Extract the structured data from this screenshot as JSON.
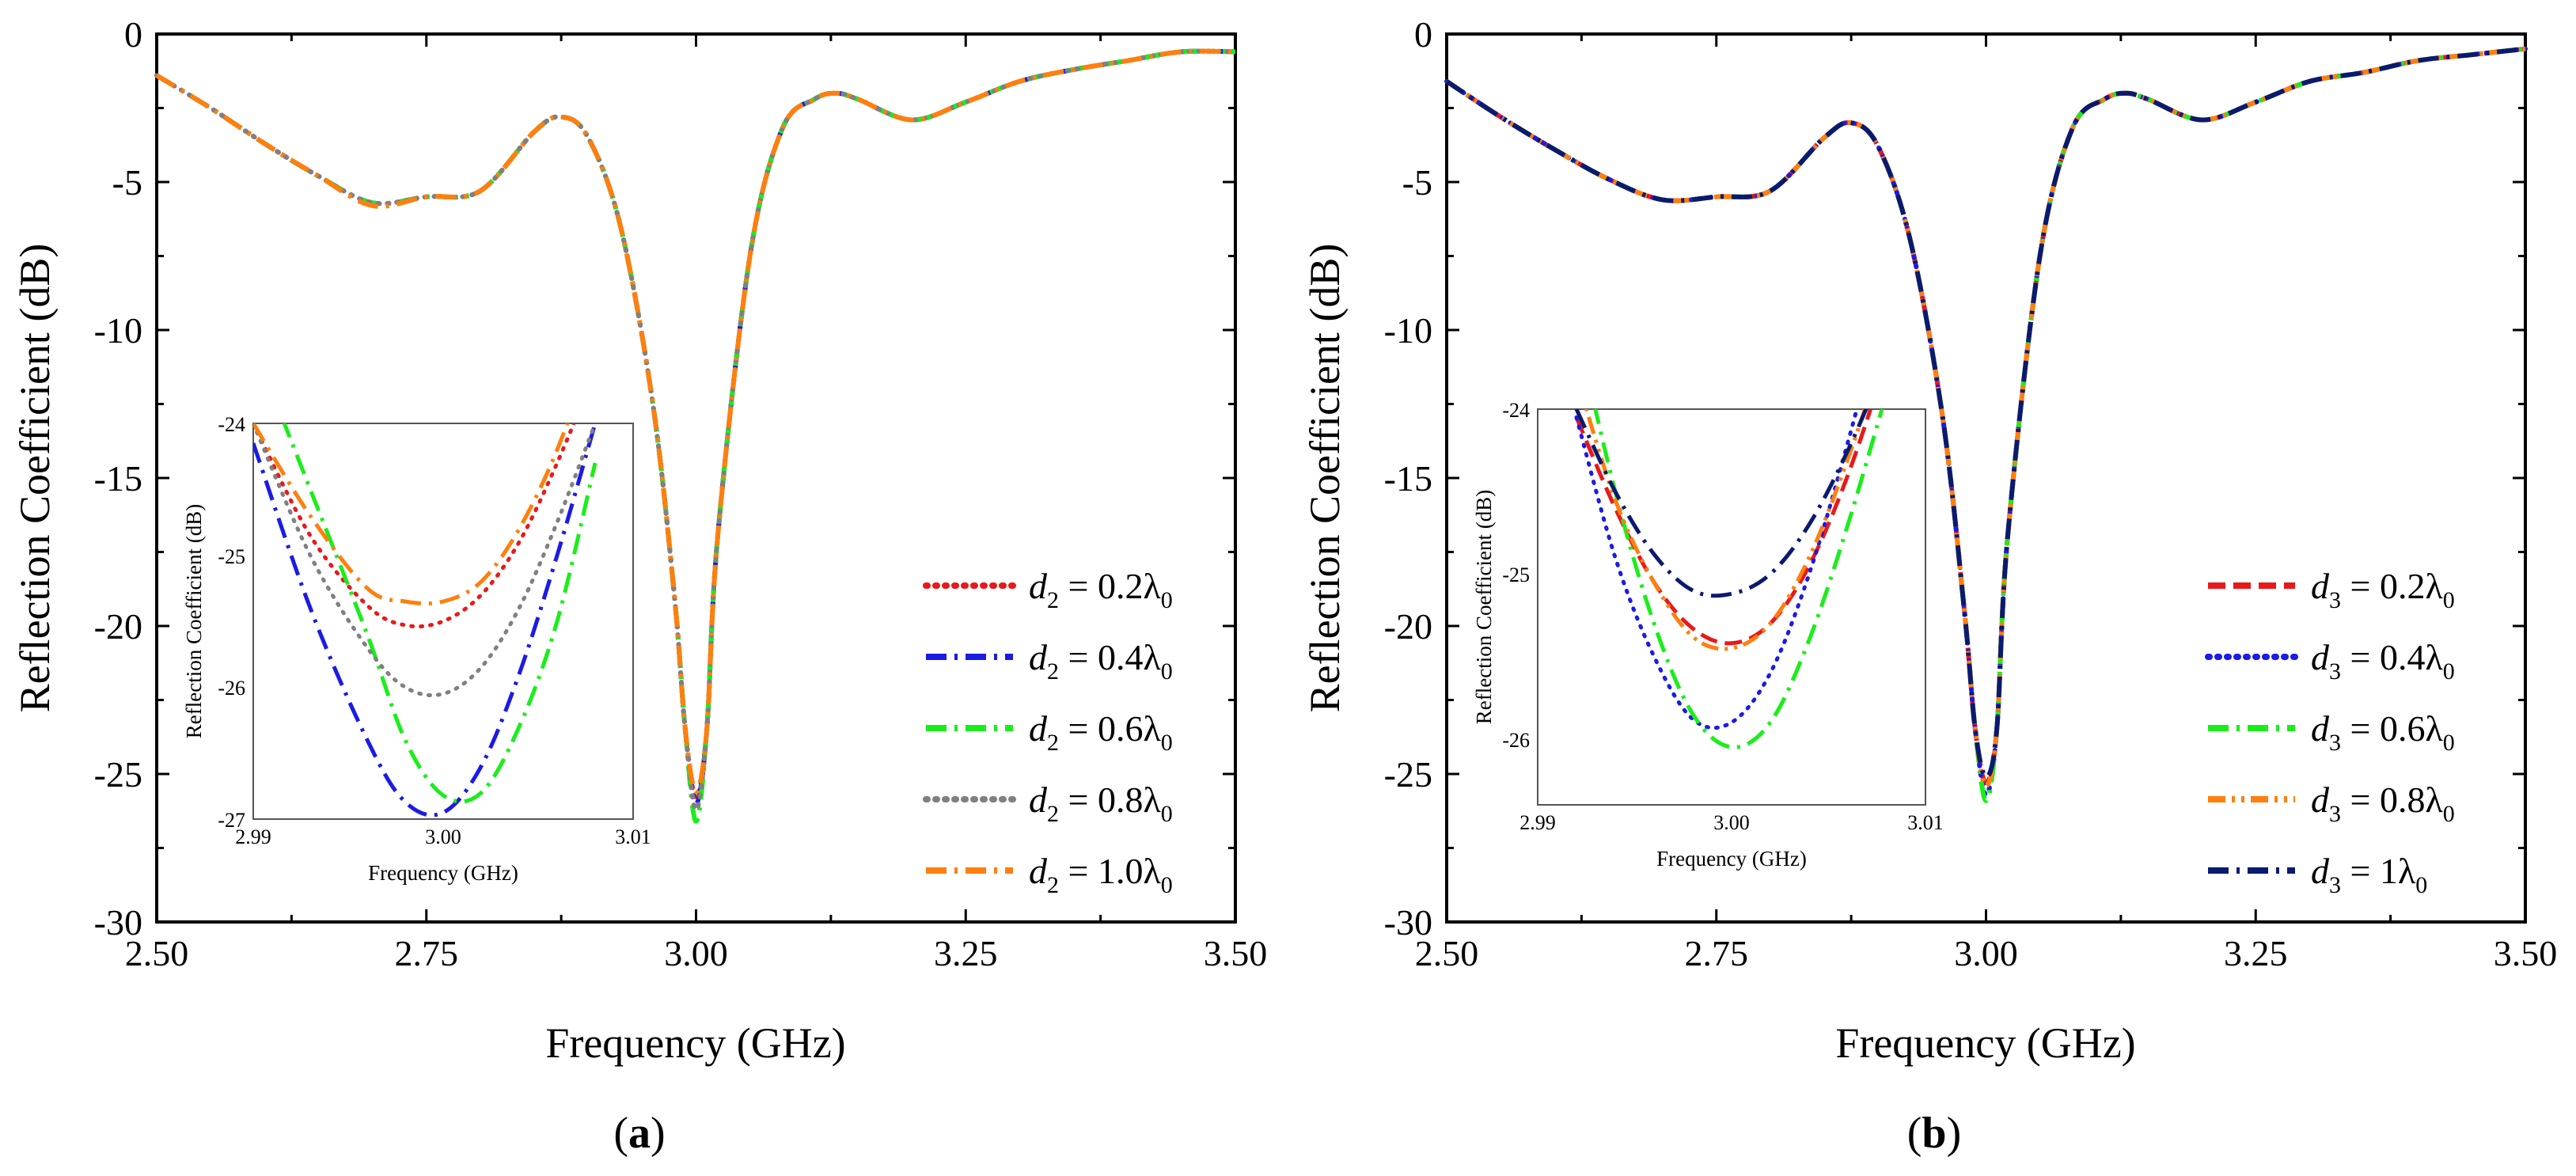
{
  "panels": [
    {
      "id": "a",
      "label": "a",
      "xlabel": "Frequency (GHz)",
      "ylabel": "Reflection Coefficient (dB)",
      "xticks": [
        "2.50",
        "2.75",
        "3.00",
        "3.25",
        "3.50"
      ],
      "yticks": [
        "0",
        "-5",
        "-10",
        "-15",
        "-20",
        "-25",
        "-30"
      ],
      "legend": [
        {
          "var": "d",
          "sub": "2",
          "value": " = 0.2λ",
          "sub0": "0"
        },
        {
          "var": "d",
          "sub": "2",
          "value": " = 0.4λ",
          "sub0": "0"
        },
        {
          "var": "d",
          "sub": "2",
          "value": " = 0.6λ",
          "sub0": "0"
        },
        {
          "var": "d",
          "sub": "2",
          "value": " = 0.8λ",
          "sub0": "0"
        },
        {
          "var": "d",
          "sub": "2",
          "value": " = 1.0λ",
          "sub0": "0"
        }
      ],
      "inset": {
        "xlabel": "Frequency (GHz)",
        "ylabel": "Reflection Coefficient (dB)",
        "xticks": [
          "2.99",
          "3.00",
          "3.01"
        ],
        "yticks": [
          "-24",
          "-25",
          "-26",
          "-27"
        ]
      }
    },
    {
      "id": "b",
      "label": "b",
      "xlabel": "Frequency (GHz)",
      "ylabel": "Reflection Coefficient (dB)",
      "xticks": [
        "2.50",
        "2.75",
        "3.00",
        "3.25",
        "3.50"
      ],
      "yticks": [
        "0",
        "-5",
        "-10",
        "-15",
        "-20",
        "-25",
        "-30"
      ],
      "legend": [
        {
          "var": "d",
          "sub": "3",
          "value": " = 0.2λ",
          "sub0": "0"
        },
        {
          "var": "d",
          "sub": "3",
          "value": " = 0.4λ",
          "sub0": "0"
        },
        {
          "var": "d",
          "sub": "3",
          "value": " = 0.6λ",
          "sub0": "0"
        },
        {
          "var": "d",
          "sub": "3",
          "value": " = 0.8λ",
          "sub0": "0"
        },
        {
          "var": "d",
          "sub": "3",
          "value": " = 1λ",
          "sub0": "0"
        }
      ],
      "inset": {
        "xlabel": "Frequency (GHz)",
        "ylabel": "Reflection Coefficient (dB)",
        "xticks": [
          "2.99",
          "3.00",
          "3.01"
        ],
        "yticks": [
          "-24",
          "-25",
          "-26"
        ]
      }
    }
  ],
  "chart_data": [
    {
      "type": "line",
      "panel": "a",
      "xlabel": "Frequency (GHz)",
      "ylabel": "Reflection Coefficient (dB)",
      "xlim": [
        2.5,
        3.5
      ],
      "ylim": [
        -30,
        0
      ],
      "x": [
        2.5,
        2.55,
        2.6,
        2.65,
        2.7,
        2.75,
        2.8,
        2.85,
        2.875,
        2.9,
        2.93,
        2.96,
        2.98,
        2.99,
        3.0,
        3.01,
        3.02,
        3.05,
        3.08,
        3.11,
        3.13,
        3.15,
        3.2,
        3.25,
        3.3,
        3.35,
        3.4,
        3.45,
        3.5
      ],
      "series": [
        {
          "name": "d2 = 0.2λ0",
          "color": "#e8191b",
          "dash": "dot",
          "y": [
            -1.4,
            -2.5,
            -3.7,
            -4.8,
            -5.7,
            -5.5,
            -5.3,
            -3.3,
            -2.8,
            -3.5,
            -6.5,
            -12.5,
            -19,
            -23.5,
            -25.8,
            -23.5,
            -17,
            -7.5,
            -3.2,
            -2.2,
            -2.0,
            -2.2,
            -2.9,
            -2.3,
            -1.6,
            -1.2,
            -0.9,
            -0.6,
            -0.6
          ]
        },
        {
          "name": "d2 = 0.4λ0",
          "color": "#1b1be6",
          "dash": "dashdot",
          "y": [
            -1.4,
            -2.5,
            -3.7,
            -4.8,
            -5.7,
            -5.5,
            -5.3,
            -3.3,
            -2.8,
            -3.5,
            -6.5,
            -12.5,
            -19,
            -23.5,
            -26.0,
            -23.5,
            -17,
            -7.5,
            -3.2,
            -2.2,
            -2.0,
            -2.2,
            -2.9,
            -2.3,
            -1.6,
            -1.2,
            -0.9,
            -0.6,
            -0.6
          ]
        },
        {
          "name": "d2 = 0.6λ0",
          "color": "#1aee1a",
          "dash": "dashdot",
          "y": [
            -1.4,
            -2.5,
            -3.7,
            -4.8,
            -5.7,
            -5.5,
            -5.3,
            -3.3,
            -2.8,
            -3.5,
            -6.5,
            -12.5,
            -19,
            -23.5,
            -26.6,
            -23.5,
            -17,
            -7.5,
            -3.2,
            -2.2,
            -2.0,
            -2.2,
            -2.9,
            -2.3,
            -1.6,
            -1.2,
            -0.9,
            -0.6,
            -0.6
          ]
        },
        {
          "name": "d2 = 0.8λ0",
          "color": "#808080",
          "dash": "dot",
          "y": [
            -1.4,
            -2.5,
            -3.7,
            -4.8,
            -5.7,
            -5.5,
            -5.3,
            -3.3,
            -2.8,
            -3.5,
            -6.5,
            -12.5,
            -19,
            -23.5,
            -26.2,
            -23.5,
            -17,
            -7.5,
            -3.2,
            -2.2,
            -2.0,
            -2.2,
            -2.9,
            -2.3,
            -1.6,
            -1.2,
            -0.9,
            -0.6,
            -0.6
          ]
        },
        {
          "name": "d2 = 1.0λ0",
          "color": "#ff7f0e",
          "dash": "dashdot",
          "y": [
            -1.4,
            -2.5,
            -3.7,
            -4.8,
            -5.8,
            -5.5,
            -5.3,
            -3.3,
            -2.8,
            -3.5,
            -6.5,
            -12.5,
            -19,
            -23.5,
            -25.6,
            -23.5,
            -17,
            -7.5,
            -3.2,
            -2.2,
            -2.0,
            -2.2,
            -2.9,
            -2.3,
            -1.6,
            -1.2,
            -0.9,
            -0.6,
            -0.6
          ]
        }
      ],
      "inset": {
        "xlim": [
          2.99,
          3.01
        ],
        "ylim": [
          -27,
          -24
        ],
        "x": [
          2.99,
          2.993,
          2.996,
          2.998,
          3.0,
          3.002,
          3.004,
          3.006,
          3.008
        ],
        "series": [
          {
            "name": "d2 = 0.2λ0",
            "y": [
              -24.0,
              -24.85,
              -25.38,
              -25.53,
              -25.5,
              -25.3,
              -24.9,
              -24.3,
              -23.6
            ]
          },
          {
            "name": "d2 = 0.4λ0",
            "y": [
              -24.15,
              -25.4,
              -26.4,
              -26.87,
              -26.95,
              -26.6,
              -25.9,
              -25.0,
              -24.0
            ]
          },
          {
            "name": "d2 = 0.6λ0",
            "y": [
              -23.4,
              -24.5,
              -25.6,
              -26.4,
              -26.82,
              -26.8,
              -26.3,
              -25.5,
              -24.3
            ]
          },
          {
            "name": "d2 = 0.8λ0",
            "y": [
              -24.0,
              -25.0,
              -25.7,
              -26.0,
              -26.05,
              -25.85,
              -25.4,
              -24.75,
              -24.0
            ]
          },
          {
            "name": "d2 = 1.0λ0",
            "y": [
              -24.0,
              -24.7,
              -25.25,
              -25.35,
              -25.35,
              -25.2,
              -24.8,
              -24.2,
              -23.4
            ]
          }
        ]
      }
    },
    {
      "type": "line",
      "panel": "b",
      "xlabel": "Frequency (GHz)",
      "ylabel": "Reflection Coefficient (dB)",
      "xlim": [
        2.5,
        3.5
      ],
      "ylim": [
        -30,
        0
      ],
      "x": [
        2.5,
        2.55,
        2.6,
        2.65,
        2.7,
        2.75,
        2.8,
        2.85,
        2.875,
        2.9,
        2.93,
        2.96,
        2.98,
        2.99,
        3.0,
        3.01,
        3.02,
        3.05,
        3.08,
        3.11,
        3.13,
        3.15,
        3.2,
        3.25,
        3.3,
        3.35,
        3.4,
        3.45,
        3.5
      ],
      "series": [
        {
          "name": "d3 = 0.2λ0",
          "color": "#e8191b",
          "dash": "dash",
          "y": [
            -1.6,
            -2.8,
            -3.9,
            -4.9,
            -5.6,
            -5.5,
            -5.3,
            -3.5,
            -3.0,
            -3.8,
            -7.0,
            -13.0,
            -19.5,
            -23.5,
            -25.3,
            -23.5,
            -17,
            -7.5,
            -3.2,
            -2.2,
            -2.0,
            -2.2,
            -2.9,
            -2.3,
            -1.6,
            -1.3,
            -0.9,
            -0.7,
            -0.5
          ]
        },
        {
          "name": "d3 = 0.4λ0",
          "color": "#1b1be6",
          "dash": "dot",
          "y": [
            -1.6,
            -2.8,
            -3.9,
            -4.9,
            -5.6,
            -5.5,
            -5.3,
            -3.5,
            -3.0,
            -3.8,
            -7.0,
            -13.0,
            -19.5,
            -23.5,
            -25.7,
            -23.5,
            -17,
            -7.5,
            -3.2,
            -2.2,
            -2.0,
            -2.2,
            -2.9,
            -2.3,
            -1.6,
            -1.3,
            -0.9,
            -0.7,
            -0.5
          ]
        },
        {
          "name": "d3 = 0.6λ0",
          "color": "#1aee1a",
          "dash": "dashdot",
          "y": [
            -1.6,
            -2.8,
            -3.9,
            -4.9,
            -5.6,
            -5.5,
            -5.3,
            -3.5,
            -3.0,
            -3.8,
            -7.0,
            -13.0,
            -19.5,
            -23.5,
            -25.9,
            -23.5,
            -17,
            -7.5,
            -3.2,
            -2.2,
            -2.0,
            -2.2,
            -2.9,
            -2.3,
            -1.6,
            -1.3,
            -0.9,
            -0.7,
            -0.5
          ]
        },
        {
          "name": "d3 = 0.8λ0",
          "color": "#ff7f0e",
          "dash": "dashdotdot",
          "y": [
            -1.6,
            -2.8,
            -3.9,
            -4.9,
            -5.6,
            -5.5,
            -5.3,
            -3.5,
            -3.0,
            -3.8,
            -7.0,
            -13.0,
            -19.5,
            -23.5,
            -25.4,
            -23.5,
            -17,
            -7.5,
            -3.2,
            -2.2,
            -2.0,
            -2.2,
            -2.9,
            -2.3,
            -1.6,
            -1.3,
            -0.9,
            -0.7,
            -0.5
          ]
        },
        {
          "name": "d3 = 1λ0",
          "color": "#0a1a6e",
          "dash": "dashdot",
          "y": [
            -1.6,
            -2.8,
            -3.9,
            -4.9,
            -5.6,
            -5.5,
            -5.3,
            -3.5,
            -3.0,
            -3.8,
            -7.0,
            -13.0,
            -19.5,
            -23.5,
            -25.1,
            -23.5,
            -17,
            -7.5,
            -3.2,
            -2.2,
            -2.0,
            -2.2,
            -2.9,
            -2.3,
            -1.6,
            -1.3,
            -0.9,
            -0.7,
            -0.5
          ]
        }
      ],
      "inset": {
        "xlim": [
          2.99,
          3.01
        ],
        "ylim": [
          -26.4,
          -24
        ],
        "x": [
          2.992,
          2.994,
          2.996,
          2.998,
          3.0,
          3.002,
          3.004,
          3.006,
          3.008
        ],
        "series": [
          {
            "name": "d3 = 0.2λ0",
            "y": [
              -24.05,
              -24.6,
              -25.05,
              -25.33,
              -25.42,
              -25.3,
              -24.95,
              -24.4,
              -23.7
            ]
          },
          {
            "name": "d3 = 0.4λ0",
            "y": [
              -24.05,
              -24.9,
              -25.5,
              -25.88,
              -25.9,
              -25.6,
              -25.0,
              -24.2,
              -23.3
            ]
          },
          {
            "name": "d3 = 0.6λ0",
            "y": [
              -23.5,
              -24.5,
              -25.3,
              -25.85,
              -26.05,
              -25.9,
              -25.4,
              -24.7,
              -23.9
            ]
          },
          {
            "name": "d3 = 0.8λ0",
            "y": [
              -23.8,
              -24.55,
              -25.05,
              -25.38,
              -25.45,
              -25.3,
              -24.9,
              -24.3,
              -23.6
            ]
          },
          {
            "name": "d3 = 1λ0",
            "y": [
              -24.0,
              -24.5,
              -24.88,
              -25.1,
              -25.12,
              -25.0,
              -24.7,
              -24.25,
              -23.7
            ]
          }
        ]
      }
    }
  ]
}
